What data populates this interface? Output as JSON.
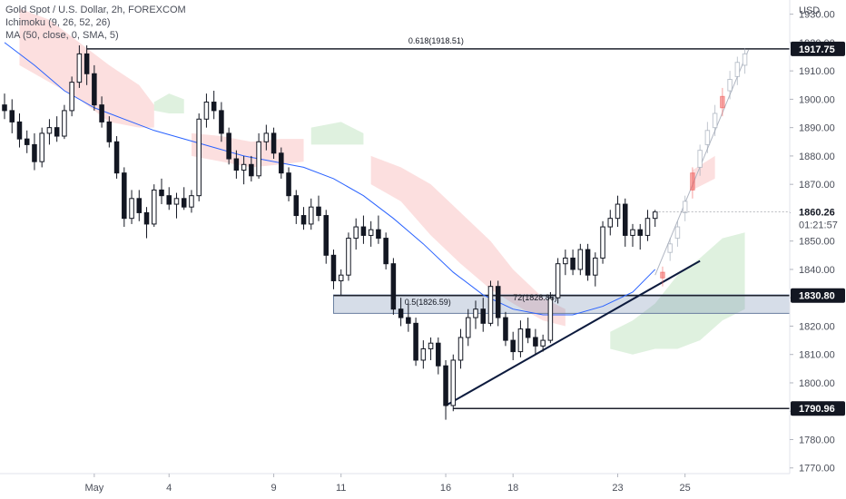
{
  "legend": {
    "title": "Gold Spot / U.S. Dollar, 2h, FOREXCOM",
    "ichimoku": "Ichimoku (9, 26, 52, 26)",
    "ma": "MA (50, close, 0, SMA, 5)"
  },
  "chart_data": {
    "type": "candlestick",
    "symbol": "Gold Spot / U.S. Dollar",
    "interval": "2h",
    "exchange": "FOREXCOM",
    "currency_label": "USD",
    "ylim": [
      1768,
      1935
    ],
    "xlim": [
      0,
      105
    ],
    "y_ticks": [
      1770,
      1780,
      1790,
      1800,
      1810,
      1820,
      1830,
      1840,
      1850,
      1860,
      1870,
      1880,
      1890,
      1900,
      1910,
      1920,
      1930
    ],
    "y_tick_labels": [
      "1770.00",
      "1780.00",
      "1790.00",
      "1800.00",
      "1810.00",
      "1820.00",
      "1830.00",
      "1840.00",
      "1850.00",
      "1860.00",
      "1870.00",
      "1880.00",
      "1890.00",
      "1900.00",
      "1910.00",
      "1920.00",
      "1930.00"
    ],
    "x_ticks": [
      {
        "x": 12,
        "label": "May"
      },
      {
        "x": 22,
        "label": "4"
      },
      {
        "x": 36,
        "label": "9"
      },
      {
        "x": 45,
        "label": "11"
      },
      {
        "x": 59,
        "label": "16"
      },
      {
        "x": 68,
        "label": "18"
      },
      {
        "x": 82,
        "label": "23"
      },
      {
        "x": 91,
        "label": "25"
      }
    ],
    "candles": [
      {
        "x": 0,
        "o": 1898,
        "h": 1902,
        "l": 1893,
        "c": 1896
      },
      {
        "x": 1,
        "o": 1896,
        "h": 1900,
        "l": 1888,
        "c": 1892
      },
      {
        "x": 2,
        "o": 1892,
        "h": 1895,
        "l": 1883,
        "c": 1886
      },
      {
        "x": 3,
        "o": 1886,
        "h": 1889,
        "l": 1881,
        "c": 1884
      },
      {
        "x": 4,
        "o": 1884,
        "h": 1888,
        "l": 1875,
        "c": 1878
      },
      {
        "x": 5,
        "o": 1878,
        "h": 1890,
        "l": 1876,
        "c": 1888
      },
      {
        "x": 6,
        "o": 1888,
        "h": 1893,
        "l": 1884,
        "c": 1890
      },
      {
        "x": 7,
        "o": 1890,
        "h": 1894,
        "l": 1885,
        "c": 1887
      },
      {
        "x": 8,
        "o": 1887,
        "h": 1898,
        "l": 1886,
        "c": 1896
      },
      {
        "x": 9,
        "o": 1896,
        "h": 1908,
        "l": 1894,
        "c": 1906
      },
      {
        "x": 10,
        "o": 1906,
        "h": 1919,
        "l": 1904,
        "c": 1916
      },
      {
        "x": 11,
        "o": 1916,
        "h": 1919,
        "l": 1905,
        "c": 1909
      },
      {
        "x": 12,
        "o": 1909,
        "h": 1912,
        "l": 1896,
        "c": 1898
      },
      {
        "x": 13,
        "o": 1898,
        "h": 1901,
        "l": 1890,
        "c": 1892
      },
      {
        "x": 14,
        "o": 1892,
        "h": 1894,
        "l": 1883,
        "c": 1885
      },
      {
        "x": 15,
        "o": 1885,
        "h": 1887,
        "l": 1872,
        "c": 1874
      },
      {
        "x": 16,
        "o": 1874,
        "h": 1876,
        "l": 1855,
        "c": 1858
      },
      {
        "x": 17,
        "o": 1858,
        "h": 1868,
        "l": 1856,
        "c": 1865
      },
      {
        "x": 18,
        "o": 1865,
        "h": 1868,
        "l": 1857,
        "c": 1860
      },
      {
        "x": 19,
        "o": 1860,
        "h": 1862,
        "l": 1851,
        "c": 1856
      },
      {
        "x": 20,
        "o": 1856,
        "h": 1870,
        "l": 1855,
        "c": 1868
      },
      {
        "x": 21,
        "o": 1868,
        "h": 1872,
        "l": 1863,
        "c": 1866
      },
      {
        "x": 22,
        "o": 1866,
        "h": 1869,
        "l": 1861,
        "c": 1863
      },
      {
        "x": 23,
        "o": 1863,
        "h": 1867,
        "l": 1858,
        "c": 1865
      },
      {
        "x": 24,
        "o": 1865,
        "h": 1869,
        "l": 1861,
        "c": 1862
      },
      {
        "x": 25,
        "o": 1862,
        "h": 1868,
        "l": 1860,
        "c": 1866
      },
      {
        "x": 26,
        "o": 1866,
        "h": 1895,
        "l": 1864,
        "c": 1893
      },
      {
        "x": 27,
        "o": 1893,
        "h": 1902,
        "l": 1890,
        "c": 1899
      },
      {
        "x": 28,
        "o": 1899,
        "h": 1903,
        "l": 1893,
        "c": 1896
      },
      {
        "x": 29,
        "o": 1896,
        "h": 1899,
        "l": 1885,
        "c": 1888
      },
      {
        "x": 30,
        "o": 1888,
        "h": 1890,
        "l": 1877,
        "c": 1879
      },
      {
        "x": 31,
        "o": 1879,
        "h": 1882,
        "l": 1872,
        "c": 1875
      },
      {
        "x": 32,
        "o": 1875,
        "h": 1880,
        "l": 1870,
        "c": 1877
      },
      {
        "x": 33,
        "o": 1877,
        "h": 1880,
        "l": 1871,
        "c": 1873
      },
      {
        "x": 34,
        "o": 1873,
        "h": 1888,
        "l": 1872,
        "c": 1885
      },
      {
        "x": 35,
        "o": 1885,
        "h": 1891,
        "l": 1882,
        "c": 1888
      },
      {
        "x": 36,
        "o": 1888,
        "h": 1890,
        "l": 1879,
        "c": 1881
      },
      {
        "x": 37,
        "o": 1881,
        "h": 1883,
        "l": 1872,
        "c": 1874
      },
      {
        "x": 38,
        "o": 1874,
        "h": 1876,
        "l": 1864,
        "c": 1866
      },
      {
        "x": 39,
        "o": 1866,
        "h": 1868,
        "l": 1856,
        "c": 1859
      },
      {
        "x": 40,
        "o": 1859,
        "h": 1862,
        "l": 1854,
        "c": 1856
      },
      {
        "x": 41,
        "o": 1856,
        "h": 1865,
        "l": 1854,
        "c": 1862
      },
      {
        "x": 42,
        "o": 1862,
        "h": 1866,
        "l": 1857,
        "c": 1859
      },
      {
        "x": 43,
        "o": 1859,
        "h": 1861,
        "l": 1842,
        "c": 1845
      },
      {
        "x": 44,
        "o": 1845,
        "h": 1847,
        "l": 1833,
        "c": 1836
      },
      {
        "x": 45,
        "o": 1836,
        "h": 1840,
        "l": 1831,
        "c": 1838
      },
      {
        "x": 46,
        "o": 1838,
        "h": 1853,
        "l": 1836,
        "c": 1851
      },
      {
        "x": 47,
        "o": 1851,
        "h": 1858,
        "l": 1847,
        "c": 1855
      },
      {
        "x": 48,
        "o": 1855,
        "h": 1859,
        "l": 1849,
        "c": 1852
      },
      {
        "x": 49,
        "o": 1852,
        "h": 1857,
        "l": 1848,
        "c": 1854
      },
      {
        "x": 50,
        "o": 1854,
        "h": 1859,
        "l": 1849,
        "c": 1851
      },
      {
        "x": 51,
        "o": 1851,
        "h": 1853,
        "l": 1840,
        "c": 1842
      },
      {
        "x": 52,
        "o": 1842,
        "h": 1844,
        "l": 1824,
        "c": 1826
      },
      {
        "x": 53,
        "o": 1826,
        "h": 1830,
        "l": 1820,
        "c": 1823
      },
      {
        "x": 54,
        "o": 1823,
        "h": 1828,
        "l": 1818,
        "c": 1821
      },
      {
        "x": 55,
        "o": 1821,
        "h": 1823,
        "l": 1806,
        "c": 1808
      },
      {
        "x": 56,
        "o": 1808,
        "h": 1815,
        "l": 1805,
        "c": 1812
      },
      {
        "x": 57,
        "o": 1812,
        "h": 1816,
        "l": 1808,
        "c": 1814
      },
      {
        "x": 58,
        "o": 1814,
        "h": 1816,
        "l": 1803,
        "c": 1806
      },
      {
        "x": 59,
        "o": 1806,
        "h": 1808,
        "l": 1787,
        "c": 1792
      },
      {
        "x": 60,
        "o": 1792,
        "h": 1810,
        "l": 1790,
        "c": 1808
      },
      {
        "x": 61,
        "o": 1808,
        "h": 1819,
        "l": 1805,
        "c": 1816
      },
      {
        "x": 62,
        "o": 1816,
        "h": 1826,
        "l": 1813,
        "c": 1823
      },
      {
        "x": 63,
        "o": 1823,
        "h": 1829,
        "l": 1819,
        "c": 1826
      },
      {
        "x": 64,
        "o": 1826,
        "h": 1830,
        "l": 1818,
        "c": 1821
      },
      {
        "x": 65,
        "o": 1821,
        "h": 1836,
        "l": 1820,
        "c": 1834
      },
      {
        "x": 66,
        "o": 1834,
        "h": 1836,
        "l": 1820,
        "c": 1823
      },
      {
        "x": 67,
        "o": 1823,
        "h": 1825,
        "l": 1813,
        "c": 1815
      },
      {
        "x": 68,
        "o": 1815,
        "h": 1818,
        "l": 1808,
        "c": 1811
      },
      {
        "x": 69,
        "o": 1811,
        "h": 1822,
        "l": 1809,
        "c": 1819
      },
      {
        "x": 70,
        "o": 1819,
        "h": 1823,
        "l": 1814,
        "c": 1816
      },
      {
        "x": 71,
        "o": 1816,
        "h": 1819,
        "l": 1810,
        "c": 1813
      },
      {
        "x": 72,
        "o": 1813,
        "h": 1817,
        "l": 1811,
        "c": 1815
      },
      {
        "x": 73,
        "o": 1815,
        "h": 1832,
        "l": 1814,
        "c": 1830
      },
      {
        "x": 74,
        "o": 1830,
        "h": 1844,
        "l": 1828,
        "c": 1842
      },
      {
        "x": 75,
        "o": 1842,
        "h": 1847,
        "l": 1838,
        "c": 1844
      },
      {
        "x": 76,
        "o": 1844,
        "h": 1847,
        "l": 1838,
        "c": 1840
      },
      {
        "x": 77,
        "o": 1840,
        "h": 1849,
        "l": 1838,
        "c": 1847
      },
      {
        "x": 78,
        "o": 1847,
        "h": 1849,
        "l": 1836,
        "c": 1838
      },
      {
        "x": 79,
        "o": 1838,
        "h": 1846,
        "l": 1834,
        "c": 1844
      },
      {
        "x": 80,
        "o": 1844,
        "h": 1857,
        "l": 1842,
        "c": 1855
      },
      {
        "x": 81,
        "o": 1855,
        "h": 1861,
        "l": 1852,
        "c": 1858
      },
      {
        "x": 82,
        "o": 1858,
        "h": 1866,
        "l": 1855,
        "c": 1863
      },
      {
        "x": 83,
        "o": 1863,
        "h": 1865,
        "l": 1848,
        "c": 1852
      },
      {
        "x": 84,
        "o": 1852,
        "h": 1856,
        "l": 1848,
        "c": 1854
      },
      {
        "x": 85,
        "o": 1854,
        "h": 1856,
        "l": 1847,
        "c": 1852
      },
      {
        "x": 86,
        "o": 1852,
        "h": 1861,
        "l": 1850,
        "c": 1858
      },
      {
        "x": 87,
        "o": 1858,
        "h": 1861,
        "l": 1855,
        "c": 1860.26
      }
    ],
    "projection_candles": [
      {
        "x": 88,
        "o": 1837,
        "h": 1841,
        "l": 1834,
        "c": 1839,
        "dir": "down"
      },
      {
        "x": 89,
        "o": 1846,
        "h": 1851,
        "l": 1843,
        "c": 1849,
        "dir": "up"
      },
      {
        "x": 90,
        "o": 1851,
        "h": 1857,
        "l": 1848,
        "c": 1855,
        "dir": "up"
      },
      {
        "x": 91,
        "o": 1860,
        "h": 1866,
        "l": 1857,
        "c": 1864,
        "dir": "up"
      },
      {
        "x": 92,
        "o": 1868,
        "h": 1876,
        "l": 1865,
        "c": 1874,
        "dir": "down"
      },
      {
        "x": 93,
        "o": 1876,
        "h": 1884,
        "l": 1873,
        "c": 1882,
        "dir": "up"
      },
      {
        "x": 94,
        "o": 1884,
        "h": 1892,
        "l": 1881,
        "c": 1889,
        "dir": "up"
      },
      {
        "x": 95,
        "o": 1890,
        "h": 1898,
        "l": 1887,
        "c": 1895,
        "dir": "up"
      },
      {
        "x": 96,
        "o": 1897,
        "h": 1904,
        "l": 1894,
        "c": 1901,
        "dir": "down"
      },
      {
        "x": 97,
        "o": 1903,
        "h": 1910,
        "l": 1900,
        "c": 1907,
        "dir": "up"
      },
      {
        "x": 98,
        "o": 1908,
        "h": 1915,
        "l": 1905,
        "c": 1913,
        "dir": "up"
      },
      {
        "x": 99,
        "o": 1912,
        "h": 1918,
        "l": 1909,
        "c": 1916,
        "dir": "up"
      }
    ],
    "projection_line": [
      [
        87,
        1838
      ],
      [
        99.5,
        1917.5
      ]
    ],
    "moving_average_50": [
      [
        0,
        1920
      ],
      [
        4,
        1912
      ],
      [
        8,
        1903
      ],
      [
        12,
        1897
      ],
      [
        16,
        1893
      ],
      [
        20,
        1889
      ],
      [
        24,
        1886
      ],
      [
        28,
        1883
      ],
      [
        32,
        1880
      ],
      [
        36,
        1878
      ],
      [
        40,
        1876
      ],
      [
        44,
        1872
      ],
      [
        48,
        1866
      ],
      [
        52,
        1858
      ],
      [
        56,
        1849
      ],
      [
        60,
        1839
      ],
      [
        64,
        1831
      ],
      [
        68,
        1826
      ],
      [
        72,
        1824
      ],
      [
        76,
        1824
      ],
      [
        80,
        1827
      ],
      [
        84,
        1832
      ],
      [
        87,
        1840
      ]
    ],
    "ichimoku_cloud_bearish": [
      [
        [
          2,
          1932,
          1912
        ],
        [
          6,
          1928,
          1906
        ],
        [
          10,
          1920,
          1900
        ],
        [
          14,
          1912,
          1892
        ],
        [
          18,
          1905,
          1890
        ],
        [
          20,
          1898,
          1890
        ]
      ],
      [
        [
          25,
          1888,
          1880
        ],
        [
          29,
          1887,
          1878
        ],
        [
          33,
          1885,
          1876
        ],
        [
          37,
          1886,
          1877
        ],
        [
          40,
          1886,
          1878
        ]
      ],
      [
        [
          49,
          1880,
          1870
        ],
        [
          53,
          1876,
          1864
        ],
        [
          57,
          1870,
          1852
        ],
        [
          61,
          1860,
          1842
        ],
        [
          65,
          1850,
          1833
        ],
        [
          68,
          1840,
          1828
        ],
        [
          72,
          1830,
          1822
        ],
        [
          75,
          1826,
          1820
        ]
      ],
      [
        [
          92,
          1875,
          1868
        ],
        [
          95,
          1880,
          1872
        ]
      ]
    ],
    "ichimoku_cloud_bullish": [
      [
        [
          20,
          1899,
          1896
        ],
        [
          22,
          1902,
          1895
        ],
        [
          24,
          1900,
          1895
        ]
      ],
      [
        [
          41,
          1890,
          1884
        ],
        [
          45,
          1892,
          1884
        ],
        [
          48,
          1888,
          1884
        ]
      ],
      [
        [
          81,
          1818,
          1812
        ],
        [
          84,
          1822,
          1810
        ],
        [
          87,
          1828,
          1812
        ],
        [
          90,
          1838,
          1812
        ],
        [
          93,
          1844,
          1815
        ],
        [
          96,
          1851,
          1822
        ],
        [
          99,
          1853,
          1826
        ]
      ]
    ],
    "resistance_line": {
      "y": 1917.75,
      "x1": 11,
      "x2": 105
    },
    "support_line": {
      "y": 1790.96,
      "x1": 60,
      "x2": 105
    },
    "trendline": [
      [
        59,
        1792
      ],
      [
        93,
        1843
      ]
    ],
    "support_zone": {
      "y_top": 1831,
      "y_bottom": 1824.5,
      "x1": 44,
      "x2": 105
    },
    "fib_labels": [
      {
        "x": 54,
        "y": 1919,
        "text": "0.618(1918.51)"
      },
      {
        "x": 53.5,
        "y": 1826.8,
        "text": "0.5(1826.59)"
      },
      {
        "x": 68,
        "y": 1828.5,
        "text": "72(1828.86)"
      }
    ],
    "price_badges": [
      {
        "value": "1917.75",
        "y": 1917.75,
        "style": "dark"
      },
      {
        "value": "1830.80",
        "y": 1830.8,
        "style": "dark"
      },
      {
        "value": "1790.96",
        "y": 1790.96,
        "style": "dark"
      }
    ],
    "last_price": {
      "value": "1860.26",
      "countdown": "01:21:57",
      "y": 1860.26
    },
    "grid": false,
    "legend_position": "top-left"
  }
}
